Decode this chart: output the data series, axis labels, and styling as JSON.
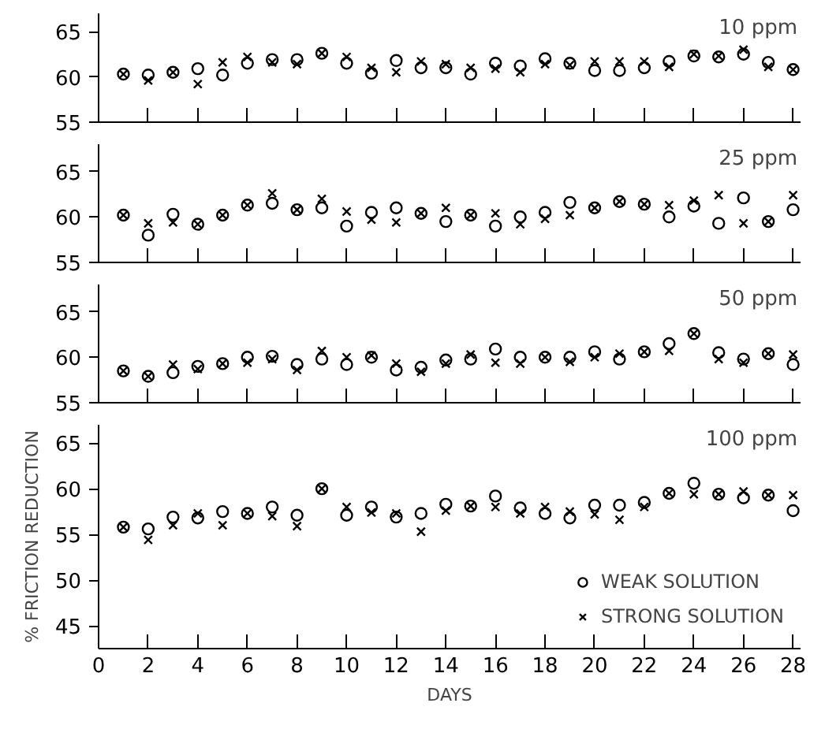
{
  "chart_data": [
    {
      "type": "scatter",
      "annotations": [
        "10 ppm"
      ],
      "x": [
        1,
        2,
        3,
        4,
        5,
        6,
        7,
        8,
        9,
        10,
        11,
        12,
        13,
        14,
        15,
        16,
        17,
        18,
        19,
        20,
        21,
        22,
        23,
        24,
        25,
        26,
        27,
        28
      ],
      "xlim": [
        0,
        28.3
      ],
      "xticks": [
        0,
        2,
        4,
        6,
        8,
        10,
        12,
        14,
        16,
        18,
        20,
        22,
        24,
        26,
        28
      ],
      "ylim": [
        55,
        67
      ],
      "yticks": [
        55,
        60,
        65
      ],
      "tick_labels": "y",
      "legend": false,
      "series": [
        {
          "color": "#000000",
          "marker": "circle",
          "values": [
            60.3,
            60.2,
            60.5,
            60.9,
            60.2,
            61.5,
            61.9,
            61.9,
            62.6,
            61.5,
            60.4,
            61.8,
            61.0,
            61.0,
            60.3,
            61.5,
            61.2,
            62.0,
            61.5,
            60.7,
            60.7,
            61.0,
            61.7,
            62.3,
            62.2,
            62.5,
            61.6,
            60.8
          ]
        },
        {
          "color": "#000000",
          "marker": "cross",
          "values": [
            60.3,
            59.6,
            60.5,
            59.2,
            61.6,
            62.2,
            61.6,
            61.4,
            62.6,
            62.2,
            61.0,
            60.5,
            61.7,
            61.4,
            61.0,
            60.9,
            60.5,
            61.4,
            61.3,
            61.7,
            61.7,
            61.7,
            61.1,
            62.5,
            62.3,
            63.0,
            61.1,
            60.8
          ]
        }
      ]
    },
    {
      "type": "scatter",
      "annotations": [
        "25 ppm"
      ],
      "x": [
        1,
        2,
        3,
        4,
        5,
        6,
        7,
        8,
        9,
        10,
        11,
        12,
        13,
        14,
        15,
        16,
        17,
        18,
        19,
        20,
        21,
        22,
        23,
        24,
        25,
        26,
        27,
        28
      ],
      "xlim": [
        0,
        28.3
      ],
      "xticks": [
        0,
        2,
        4,
        6,
        8,
        10,
        12,
        14,
        16,
        18,
        20,
        22,
        24,
        26,
        28
      ],
      "ylim": [
        55,
        68
      ],
      "yticks": [
        55,
        60,
        65
      ],
      "tick_labels": "y",
      "legend": false,
      "series": [
        {
          "color": "#000000",
          "marker": "circle",
          "values": [
            60.2,
            58.0,
            60.3,
            59.2,
            60.2,
            61.3,
            61.5,
            60.8,
            61.0,
            59.0,
            60.5,
            61.0,
            60.4,
            59.5,
            60.2,
            59.0,
            60.0,
            60.5,
            61.6,
            61.0,
            61.7,
            61.4,
            60.0,
            61.2,
            59.3,
            62.1,
            59.5,
            60.8
          ]
        },
        {
          "color": "#000000",
          "marker": "cross",
          "values": [
            60.2,
            59.3,
            59.4,
            59.2,
            60.2,
            61.3,
            62.6,
            60.8,
            62.0,
            60.6,
            59.7,
            59.4,
            60.4,
            61.0,
            60.2,
            60.4,
            59.2,
            59.8,
            60.2,
            61.0,
            61.7,
            61.4,
            61.3,
            61.8,
            62.4,
            59.3,
            59.5,
            62.4
          ]
        }
      ]
    },
    {
      "type": "scatter",
      "annotations": [
        "50 ppm"
      ],
      "x": [
        1,
        2,
        3,
        4,
        5,
        6,
        7,
        8,
        9,
        10,
        11,
        12,
        13,
        14,
        15,
        16,
        17,
        18,
        19,
        20,
        21,
        22,
        23,
        24,
        25,
        26,
        27,
        28
      ],
      "xlim": [
        0,
        28.3
      ],
      "xticks": [
        0,
        2,
        4,
        6,
        8,
        10,
        12,
        14,
        16,
        18,
        20,
        22,
        24,
        26,
        28
      ],
      "ylim": [
        55,
        68
      ],
      "yticks": [
        55,
        60,
        65
      ],
      "tick_labels": "y",
      "legend": false,
      "series": [
        {
          "color": "#000000",
          "marker": "circle",
          "values": [
            58.5,
            57.9,
            58.3,
            59.0,
            59.3,
            60.0,
            60.1,
            59.2,
            59.8,
            59.2,
            60.0,
            58.6,
            58.9,
            59.7,
            59.8,
            60.9,
            60.0,
            60.0,
            60.0,
            60.6,
            59.8,
            60.6,
            61.5,
            62.6,
            60.5,
            59.8,
            60.4,
            59.2
          ]
        },
        {
          "color": "#000000",
          "marker": "cross",
          "values": [
            58.5,
            57.9,
            59.2,
            58.7,
            59.3,
            59.4,
            59.8,
            58.6,
            60.7,
            60.0,
            60.2,
            59.3,
            58.4,
            59.3,
            60.3,
            59.4,
            59.3,
            60.0,
            59.5,
            60.0,
            60.4,
            60.6,
            60.7,
            62.6,
            59.8,
            59.4,
            60.4,
            60.3
          ]
        }
      ]
    },
    {
      "type": "scatter",
      "annotations": [
        "100 ppm"
      ],
      "xlabel": "DAYS",
      "ylabel": "% FRICTION REDUCTION",
      "x": [
        1,
        2,
        3,
        4,
        5,
        6,
        7,
        8,
        9,
        10,
        11,
        12,
        13,
        14,
        15,
        16,
        17,
        18,
        19,
        20,
        21,
        22,
        23,
        24,
        25,
        26,
        27,
        28
      ],
      "xlim": [
        0,
        28.3
      ],
      "xticks": [
        0,
        2,
        4,
        6,
        8,
        10,
        12,
        14,
        16,
        18,
        20,
        22,
        24,
        26,
        28
      ],
      "ylim": [
        42.5,
        67
      ],
      "yticks": [
        45,
        50,
        55,
        60,
        65
      ],
      "legend": "bottom right",
      "series": [
        {
          "name": "WEAK SOLUTION",
          "color": "#000000",
          "marker": "circle",
          "values": [
            55.8,
            55.6,
            56.9,
            56.8,
            57.5,
            57.3,
            58.0,
            57.1,
            60.0,
            57.1,
            58.0,
            56.9,
            57.3,
            58.3,
            58.1,
            59.2,
            57.9,
            57.3,
            56.8,
            58.2,
            58.2,
            58.5,
            59.5,
            60.6,
            59.4,
            59.0,
            59.3,
            57.6
          ]
        },
        {
          "name": "STRONG SOLUTION",
          "color": "#000000",
          "marker": "cross",
          "values": [
            55.8,
            54.4,
            56.0,
            57.3,
            56.0,
            57.3,
            57.0,
            55.9,
            60.0,
            58.0,
            57.4,
            57.3,
            55.3,
            57.6,
            58.1,
            58.0,
            57.3,
            58.0,
            57.5,
            57.2,
            56.6,
            58.0,
            59.5,
            59.4,
            59.4,
            59.7,
            59.3,
            59.3
          ]
        }
      ]
    }
  ]
}
